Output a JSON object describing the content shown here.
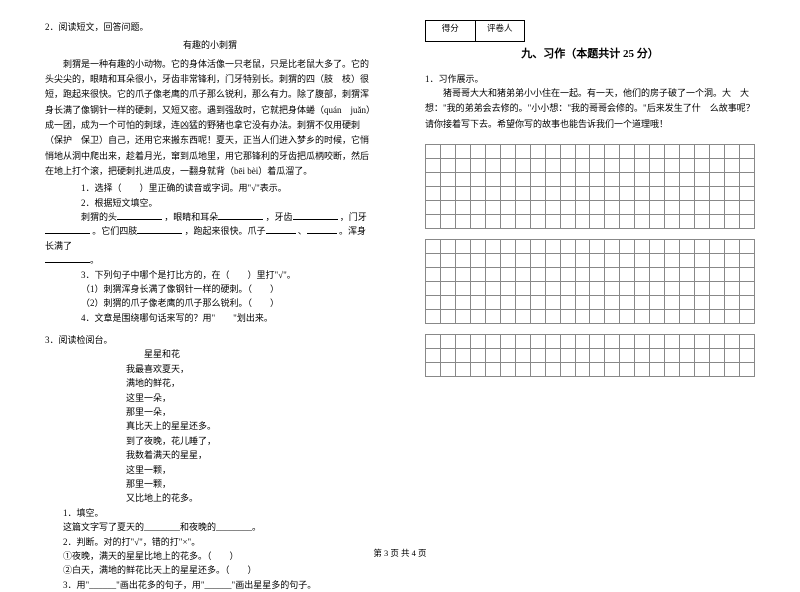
{
  "left": {
    "q2": "2．阅读短文，回答问题。",
    "title2": "有趣的小刺猬",
    "para1": "刺猬是一种有趣的小动物。它的身体活像一只老鼠，只是比老鼠大多了。它的头尖尖的，眼睛和耳朵很小，牙齿非常锋利，门牙特别长。刺猬的四（肢　枝）很短，跑起来很快。它的爪子像老鹰的爪子那么锐利，那么有力。除了腹部，刺猬浑身长满了像钢针一样的硬刺，又短又密。遇到强敌时，它就把身体蜷（quán　juǎn）成一团，成为一个可怕的刺球，连凶猛的野猪也拿它没有办法。刺猬不仅用硬刺（保护　保卫）自己，还用它来搬东西呢！夏天，正当人们进入梦乡的时候，它悄悄地从洞中爬出来，趁着月光，窜到瓜地里，用它那锋利的牙齿把瓜柄咬断，然后在地上打个滚，把硬刺扎进瓜皮，一翻身就背（bēi bèi）着瓜溜了。",
    "s1": "1．选择（　　）里正确的读音或字词。用\"√\"表示。",
    "s2": "2．根据短文填空。",
    "s2line1a": "刺猬的头",
    "s2line1b": "，眼睛和耳朵",
    "s2line1c": "，牙齿",
    "s2line1d": "，门牙",
    "s2line2a": "。它们四肢",
    "s2line2b": "，跑起来很快。爪子",
    "s2line2c": "、",
    "s2line2d": "。浑身长满了",
    "s2line3": "。",
    "s3": "3．下列句子中哪个是打比方的，在（　　）里打\"√\"。",
    "s3a": "（1）刺猬浑身长满了像钢针一样的硬刺。（　　）",
    "s3b": "（2）刺猬的爪子像老鹰的爪子那么锐利。（　　）",
    "s4": "4．文章是围绕哪句话来写的？用\"　　\"划出来。",
    "q3": "3．阅读检阅台。",
    "poem_title": "星星和花",
    "poem": [
      "我最喜欢夏天，",
      "满地的鲜花，",
      "这里一朵，",
      "那里一朵，",
      "真比天上的星星还多。",
      "到了夜晚，花儿睡了，",
      "我数着满天的星星，",
      "这里一颗，",
      "那里一颗，",
      "又比地上的花多。"
    ],
    "p1": "1．填空。",
    "p1line": "这篇文字写了夏天的________和夜晚的________。",
    "p2": "2．判断。对的打\"√\"，错的打\"×\"。",
    "p2a": "①夜晚，满天的星星比地上的花多。（　　）",
    "p2b": "②白天，满地的鲜花比天上的星星还多。（　　）",
    "p3": "3．用\"______\"画出花多的句子，用\"______\"画出星星多的句子。"
  },
  "right": {
    "score_l": "得分",
    "score_r": "评卷人",
    "section": "九、习作（本题共计 25 分）",
    "q1": "1．习作展示。",
    "prompt": "猪哥哥大大和猪弟弟小小住在一起。有一天，他们的房子破了一个洞。大　大想：\"我的弟弟会去修的。\"小小想：\"我的哥哥会修的。\"后来发生了什　么故事呢？请你接着写下去。希望你写的故事也能告诉我们一个道理哦！",
    "grid": {
      "cols": 22,
      "block1_rows": 6,
      "block2_rows": 6,
      "block3_rows": 3
    }
  },
  "footer": "第 3 页 共 4 页",
  "style": {
    "text_color": "#000000",
    "bg_color": "#ffffff",
    "grid_border": "#888888",
    "base_fontsize": 9
  }
}
